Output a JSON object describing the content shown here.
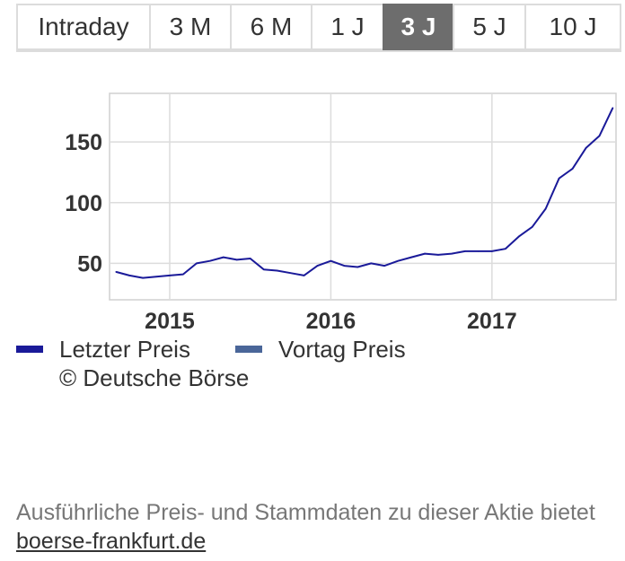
{
  "tabs": [
    {
      "label": "Intraday",
      "active": false
    },
    {
      "label": "3 M",
      "active": false
    },
    {
      "label": "6 M",
      "active": false
    },
    {
      "label": "1 J",
      "active": false
    },
    {
      "label": "3 J",
      "active": true
    },
    {
      "label": "5 J",
      "active": false
    },
    {
      "label": "10 J",
      "active": false
    }
  ],
  "chart_data": {
    "type": "line",
    "xlim": [
      "2014-09",
      "2017-10"
    ],
    "ylim": [
      20,
      190
    ],
    "x_ticks": [
      "2015",
      "2016",
      "2017"
    ],
    "y_ticks": [
      50,
      100,
      150
    ],
    "grid": true,
    "series": [
      {
        "name": "Letzter Preis",
        "color": "#1a1a99",
        "x": [
          "2014-09-01",
          "2014-10-01",
          "2014-11-01",
          "2014-12-01",
          "2015-01-01",
          "2015-02-01",
          "2015-03-01",
          "2015-04-01",
          "2015-05-01",
          "2015-06-01",
          "2015-07-01",
          "2015-08-01",
          "2015-09-01",
          "2015-10-01",
          "2015-11-01",
          "2015-12-01",
          "2016-01-01",
          "2016-02-01",
          "2016-03-01",
          "2016-04-01",
          "2016-05-01",
          "2016-06-01",
          "2016-07-01",
          "2016-08-01",
          "2016-09-01",
          "2016-10-01",
          "2016-11-01",
          "2016-12-01",
          "2017-01-01",
          "2017-02-01",
          "2017-03-01",
          "2017-04-01",
          "2017-05-01",
          "2017-06-01",
          "2017-07-01",
          "2017-08-01",
          "2017-09-01",
          "2017-10-01"
        ],
        "y": [
          43,
          40,
          38,
          39,
          40,
          41,
          50,
          52,
          55,
          53,
          54,
          45,
          44,
          42,
          40,
          48,
          52,
          48,
          47,
          50,
          48,
          52,
          55,
          58,
          57,
          58,
          60,
          60,
          60,
          62,
          72,
          80,
          95,
          120,
          128,
          145,
          155,
          178
        ]
      },
      {
        "name": "Vortag Preis",
        "color": "#4a6699"
      }
    ]
  },
  "legend": {
    "items": [
      {
        "label": "Letzter Preis",
        "color": "#1a1a99"
      },
      {
        "label": "Vortag Preis",
        "color": "#4a6699"
      }
    ],
    "copyright": "© Deutsche Börse"
  },
  "footer": {
    "text": "Ausführliche Preis- und Stammdaten zu dieser Aktie bietet",
    "link": "boerse-frankfurt.de"
  }
}
